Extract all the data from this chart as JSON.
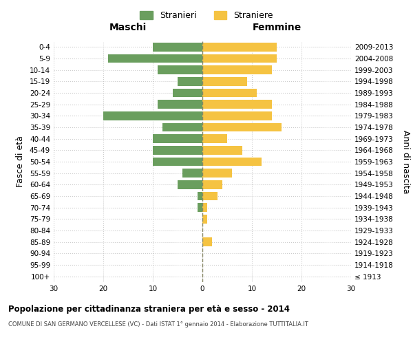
{
  "age_groups": [
    "100+",
    "95-99",
    "90-94",
    "85-89",
    "80-84",
    "75-79",
    "70-74",
    "65-69",
    "60-64",
    "55-59",
    "50-54",
    "45-49",
    "40-44",
    "35-39",
    "30-34",
    "25-29",
    "20-24",
    "15-19",
    "10-14",
    "5-9",
    "0-4"
  ],
  "birth_years": [
    "≤ 1913",
    "1914-1918",
    "1919-1923",
    "1924-1928",
    "1929-1933",
    "1934-1938",
    "1939-1943",
    "1944-1948",
    "1949-1953",
    "1954-1958",
    "1959-1963",
    "1964-1968",
    "1969-1973",
    "1974-1978",
    "1979-1983",
    "1984-1988",
    "1989-1993",
    "1994-1998",
    "1999-2003",
    "2004-2008",
    "2009-2013"
  ],
  "maschi": [
    0,
    0,
    0,
    0,
    0,
    0,
    1,
    1,
    5,
    4,
    10,
    10,
    10,
    8,
    20,
    9,
    6,
    5,
    9,
    19,
    10
  ],
  "femmine": [
    0,
    0,
    0,
    2,
    0,
    1,
    1,
    3,
    4,
    6,
    12,
    8,
    5,
    16,
    14,
    14,
    11,
    9,
    14,
    15,
    15
  ],
  "color_maschi": "#6a9e5e",
  "color_femmine": "#f5c342",
  "color_grid": "#cccccc",
  "color_zero_line": "#888866",
  "xlim": 30,
  "title": "Popolazione per cittadinanza straniera per età e sesso - 2014",
  "subtitle": "COMUNE DI SAN GERMANO VERCELLESE (VC) - Dati ISTAT 1° gennaio 2014 - Elaborazione TUTTITALIA.IT",
  "ylabel_left": "Fasce di età",
  "ylabel_right": "Anni di nascita",
  "header_maschi": "Maschi",
  "header_femmine": "Femmine",
  "legend_maschi": "Stranieri",
  "legend_femmine": "Straniere",
  "bg_color": "#ffffff"
}
